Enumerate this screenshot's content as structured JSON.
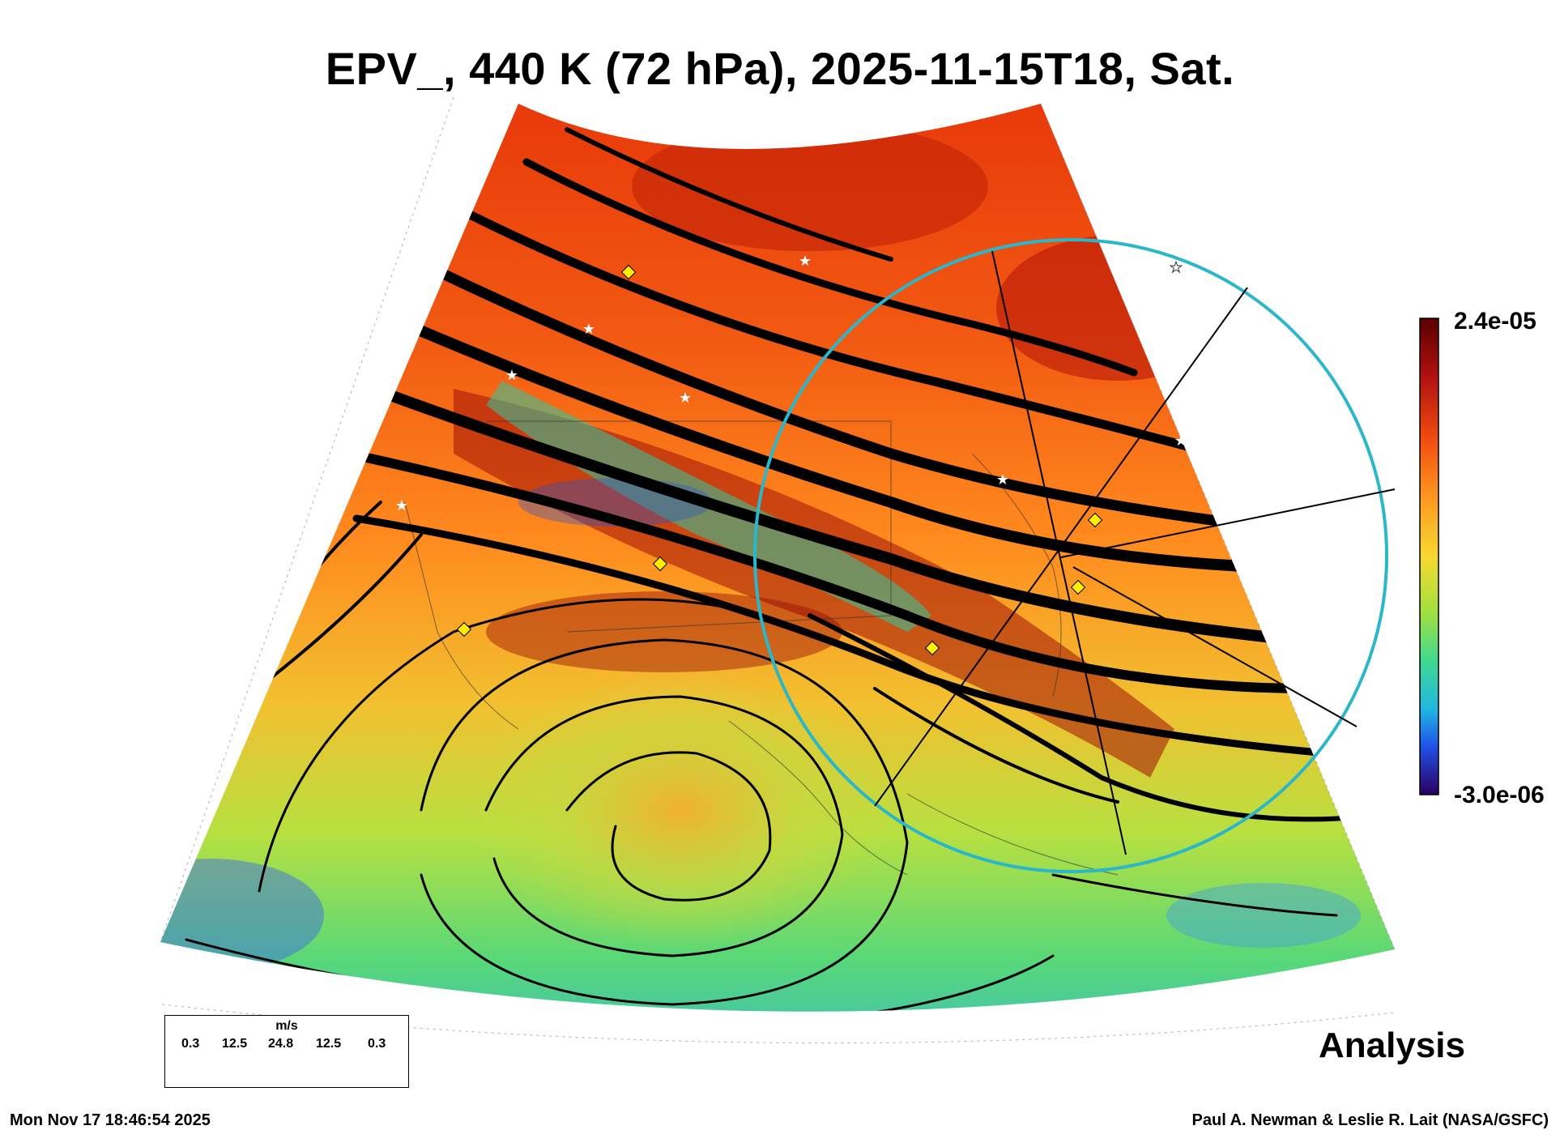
{
  "title": "EPV_, 440 K (72 hPa), 2025-11-15T18, Sat.",
  "colorbar": {
    "max_label": "2.4e-05",
    "min_label": "-3.0e-06"
  },
  "analysis_label": "Analysis",
  "legend": {
    "unit": "m/s",
    "values": [
      "0.3",
      "12.5",
      "24.8",
      "12.5",
      "0.3"
    ]
  },
  "footer": {
    "timestamp": "Mon Nov 17 18:46:54 2025",
    "credit": "Paul A. Newman & Leslie R. Lait (NASA/GSFC)"
  },
  "colors": {
    "pv_high": "#6b0000",
    "pv_mid": "#ff7a1a",
    "pv_low": "#2a00a0",
    "ring": "#2bb7c9",
    "marker_diamond": "#ffee00",
    "marker_star": "#ffffff"
  }
}
